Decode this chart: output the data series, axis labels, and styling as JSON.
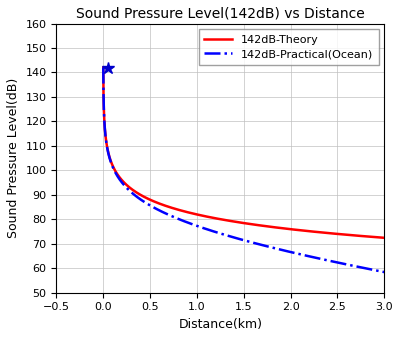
{
  "title": "Sound Pressure Level(142dB) vs Distance",
  "xlabel": "Distance(km)",
  "ylabel": "Sound Pressure Level(dB)",
  "xlim": [
    -0.5,
    3
  ],
  "ylim": [
    50,
    160
  ],
  "xticks": [
    -0.5,
    0,
    0.5,
    1,
    1.5,
    2,
    2.5,
    3
  ],
  "yticks": [
    50,
    60,
    70,
    80,
    90,
    100,
    110,
    120,
    130,
    140,
    150,
    160
  ],
  "ref_spl": 142,
  "ref_dist": 0.001,
  "marker_dist": 0.05,
  "marker_spl": 142,
  "theory_color": "#FF0000",
  "practical_color": "#0000FF",
  "theory_label": "142dB-Theory",
  "practical_label": "142dB-Practical(Ocean)",
  "marker_color": "#0000CC",
  "absorption_coeff": 0.7,
  "figsize": [
    4.0,
    3.38
  ],
  "dpi": 100,
  "title_fontsize": 10,
  "axis_label_fontsize": 9,
  "tick_fontsize": 8,
  "legend_fontsize": 8
}
